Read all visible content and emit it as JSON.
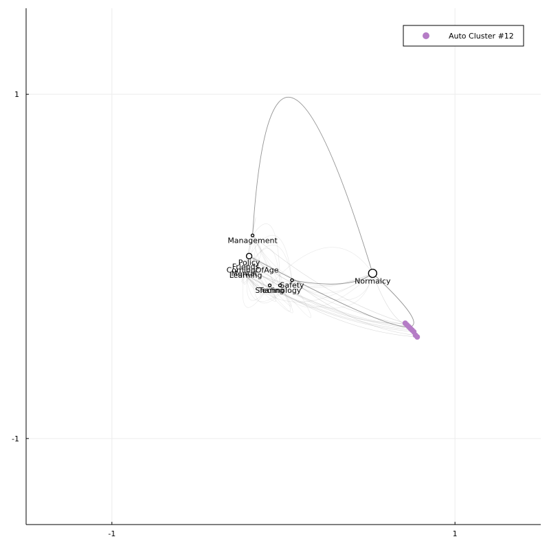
{
  "chart_data": {
    "type": "scatter",
    "title": "",
    "xlabel": "",
    "ylabel": "",
    "xlim": [
      -1.5,
      1.5
    ],
    "ylim": [
      -1.5,
      1.5
    ],
    "x_ticks": [
      -1,
      1
    ],
    "x_tick_labels": [
      "-1",
      "1"
    ],
    "y_ticks": [
      -1,
      1
    ],
    "y_tick_labels": [
      "-1",
      "1"
    ],
    "grid": true,
    "legend_position": "top-right",
    "legend": [
      {
        "label": "Auto Cluster #12",
        "color": "#b57cc6",
        "marker": "circle"
      }
    ],
    "colors": {
      "nodes": "#000000",
      "edges": "#808080",
      "cluster": "#b57cc6"
    },
    "nodes": [
      {
        "label": "Management",
        "x": -0.18,
        "y": 0.18,
        "size": "small"
      },
      {
        "label": "Policy",
        "x": -0.2,
        "y": 0.06,
        "size": "medium"
      },
      {
        "label": "Friends",
        "x": -0.22,
        "y": 0.0,
        "size": "none"
      },
      {
        "label": "ComingOfAge",
        "x": -0.18,
        "y": -0.02,
        "size": "none"
      },
      {
        "label": "Mental",
        "x": -0.23,
        "y": -0.04,
        "size": "none"
      },
      {
        "label": "Learning",
        "x": -0.22,
        "y": -0.05,
        "size": "none"
      },
      {
        "label": "Safety",
        "x": 0.05,
        "y": -0.08,
        "size": "small"
      },
      {
        "label": "Sharing",
        "x": -0.08,
        "y": -0.11,
        "size": "small"
      },
      {
        "label": "Technology",
        "x": -0.02,
        "y": -0.11,
        "size": "small"
      },
      {
        "label": "Normalcy",
        "x": 0.52,
        "y": -0.04,
        "size": "large"
      }
    ],
    "main_edges": [
      {
        "from": "Management",
        "to": "Normalcy",
        "bend_to": [
          0.05,
          0.98
        ]
      },
      {
        "from": "Normalcy",
        "to": "Safety",
        "bend_to": [
          0.34,
          -0.1
        ]
      },
      {
        "from": "Policy",
        "to": "Normalcy",
        "bend_to": [
          0.7,
          -0.35
        ]
      }
    ],
    "cluster_points": [
      {
        "x": 0.71,
        "y": -0.33
      },
      {
        "x": 0.72,
        "y": -0.34
      },
      {
        "x": 0.73,
        "y": -0.35
      },
      {
        "x": 0.74,
        "y": -0.36
      },
      {
        "x": 0.75,
        "y": -0.37
      },
      {
        "x": 0.76,
        "y": -0.38
      },
      {
        "x": 0.77,
        "y": -0.4
      },
      {
        "x": 0.78,
        "y": -0.41
      }
    ]
  }
}
